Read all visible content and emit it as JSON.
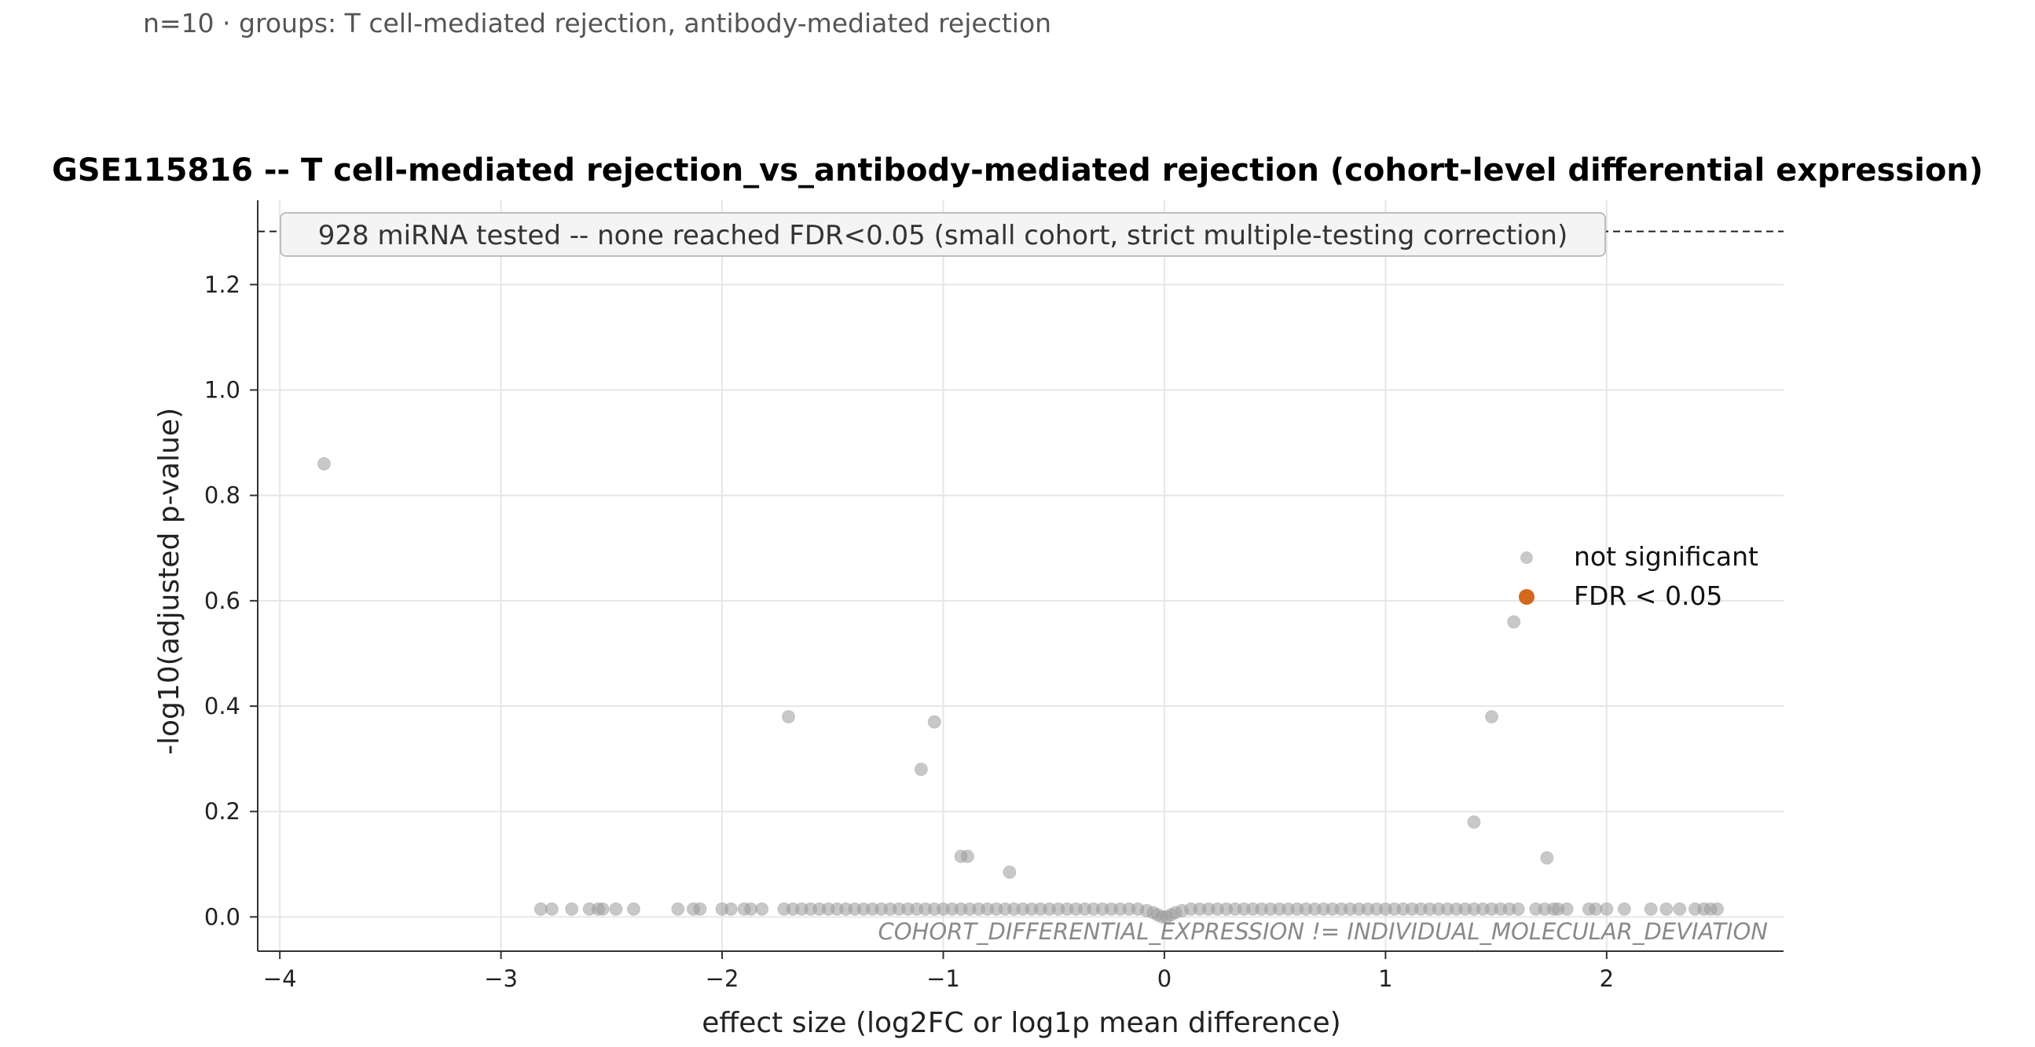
{
  "subtitle": "n=10 · groups: T cell-mediated rejection, antibody-mediated rejection",
  "colors": {
    "not_significant": "#9a9a9a",
    "significant": "#d2691e",
    "grid": "#e6e6e6"
  },
  "chart_data": {
    "type": "scatter",
    "title": "GSE115816 -- T cell-mediated rejection_vs_antibody-mediated rejection (cohort-level differential expression)",
    "xlabel": "effect size (log2FC or log1p mean difference)",
    "ylabel": "-log10(adjusted p-value)",
    "xlim": [
      -4.1,
      2.8
    ],
    "ylim": [
      -0.065,
      1.36
    ],
    "xticks": [
      -4,
      -3,
      -2,
      -1,
      0,
      1,
      2
    ],
    "xtick_labels": [
      "−4",
      "−3",
      "−2",
      "−1",
      "0",
      "1",
      "2"
    ],
    "yticks": [
      0.0,
      0.2,
      0.4,
      0.6,
      0.8,
      1.0,
      1.2
    ],
    "ytick_labels": [
      "0.0",
      "0.2",
      "0.4",
      "0.6",
      "0.8",
      "1.0",
      "1.2"
    ],
    "grid": true,
    "legend_position": "right",
    "threshold_line": {
      "y": 1.301,
      "style": "dashed"
    },
    "annotation_box": "928 miRNA tested -- none reached FDR<0.05 (small cohort, strict multiple-testing correction)",
    "footnote": "COHORT_DIFFERENTIAL_EXPRESSION != INDIVIDUAL_MOLECULAR_DEVIATION",
    "series": [
      {
        "name": "not significant",
        "points": [
          [
            -3.8,
            0.86
          ],
          [
            -1.7,
            0.38
          ],
          [
            -1.04,
            0.37
          ],
          [
            -1.1,
            0.28
          ],
          [
            -0.92,
            0.115
          ],
          [
            -0.89,
            0.115
          ],
          [
            -0.7,
            0.085
          ],
          [
            1.58,
            0.56
          ],
          [
            1.48,
            0.38
          ],
          [
            1.4,
            0.18
          ],
          [
            1.73,
            0.112
          ],
          [
            -2.82,
            0.015
          ],
          [
            -2.77,
            0.015
          ],
          [
            -2.68,
            0.015
          ],
          [
            -2.6,
            0.015
          ],
          [
            -2.56,
            0.015
          ],
          [
            -2.54,
            0.015
          ],
          [
            -2.48,
            0.015
          ],
          [
            -2.4,
            0.015
          ],
          [
            -2.2,
            0.015
          ],
          [
            -2.13,
            0.015
          ],
          [
            -2.1,
            0.015
          ],
          [
            -2.0,
            0.015
          ],
          [
            -1.96,
            0.015
          ],
          [
            -1.9,
            0.015
          ],
          [
            -1.87,
            0.015
          ],
          [
            -1.82,
            0.015
          ],
          [
            -1.72,
            0.015
          ],
          [
            -1.68,
            0.015
          ],
          [
            -1.64,
            0.015
          ],
          [
            -1.6,
            0.015
          ],
          [
            -1.56,
            0.015
          ],
          [
            -1.52,
            0.015
          ],
          [
            -1.48,
            0.015
          ],
          [
            -1.44,
            0.015
          ],
          [
            -1.4,
            0.015
          ],
          [
            -1.36,
            0.015
          ],
          [
            -1.32,
            0.015
          ],
          [
            -1.28,
            0.015
          ],
          [
            -1.24,
            0.015
          ],
          [
            -1.2,
            0.015
          ],
          [
            -1.16,
            0.015
          ],
          [
            -1.12,
            0.015
          ],
          [
            -1.08,
            0.015
          ],
          [
            -1.04,
            0.015
          ],
          [
            -1.0,
            0.015
          ],
          [
            -0.96,
            0.015
          ],
          [
            -0.92,
            0.015
          ],
          [
            -0.88,
            0.015
          ],
          [
            -0.84,
            0.015
          ],
          [
            -0.8,
            0.015
          ],
          [
            -0.76,
            0.015
          ],
          [
            -0.72,
            0.015
          ],
          [
            -0.68,
            0.015
          ],
          [
            -0.64,
            0.015
          ],
          [
            -0.6,
            0.015
          ],
          [
            -0.56,
            0.015
          ],
          [
            -0.52,
            0.015
          ],
          [
            -0.48,
            0.015
          ],
          [
            -0.44,
            0.015
          ],
          [
            -0.4,
            0.015
          ],
          [
            -0.36,
            0.015
          ],
          [
            -0.32,
            0.015
          ],
          [
            -0.28,
            0.015
          ],
          [
            -0.24,
            0.015
          ],
          [
            -0.2,
            0.015
          ],
          [
            -0.16,
            0.015
          ],
          [
            -0.12,
            0.015
          ],
          [
            -0.08,
            0.012
          ],
          [
            -0.05,
            0.008
          ],
          [
            -0.03,
            0.004
          ],
          [
            -0.01,
            0.0
          ],
          [
            0.01,
            0.0
          ],
          [
            0.03,
            0.004
          ],
          [
            0.05,
            0.008
          ],
          [
            0.08,
            0.012
          ],
          [
            0.12,
            0.015
          ],
          [
            0.16,
            0.015
          ],
          [
            0.2,
            0.015
          ],
          [
            0.24,
            0.015
          ],
          [
            0.28,
            0.015
          ],
          [
            0.32,
            0.015
          ],
          [
            0.36,
            0.015
          ],
          [
            0.4,
            0.015
          ],
          [
            0.44,
            0.015
          ],
          [
            0.48,
            0.015
          ],
          [
            0.52,
            0.015
          ],
          [
            0.56,
            0.015
          ],
          [
            0.6,
            0.015
          ],
          [
            0.64,
            0.015
          ],
          [
            0.68,
            0.015
          ],
          [
            0.72,
            0.015
          ],
          [
            0.76,
            0.015
          ],
          [
            0.8,
            0.015
          ],
          [
            0.84,
            0.015
          ],
          [
            0.88,
            0.015
          ],
          [
            0.92,
            0.015
          ],
          [
            0.96,
            0.015
          ],
          [
            1.0,
            0.015
          ],
          [
            1.04,
            0.015
          ],
          [
            1.08,
            0.015
          ],
          [
            1.12,
            0.015
          ],
          [
            1.16,
            0.015
          ],
          [
            1.2,
            0.015
          ],
          [
            1.24,
            0.015
          ],
          [
            1.28,
            0.015
          ],
          [
            1.32,
            0.015
          ],
          [
            1.36,
            0.015
          ],
          [
            1.4,
            0.015
          ],
          [
            1.44,
            0.015
          ],
          [
            1.48,
            0.015
          ],
          [
            1.52,
            0.015
          ],
          [
            1.56,
            0.015
          ],
          [
            1.6,
            0.015
          ],
          [
            1.68,
            0.015
          ],
          [
            1.72,
            0.015
          ],
          [
            1.76,
            0.015
          ],
          [
            1.78,
            0.015
          ],
          [
            1.82,
            0.015
          ],
          [
            1.92,
            0.015
          ],
          [
            1.95,
            0.015
          ],
          [
            2.0,
            0.015
          ],
          [
            2.08,
            0.015
          ],
          [
            2.2,
            0.015
          ],
          [
            2.27,
            0.015
          ],
          [
            2.33,
            0.015
          ],
          [
            2.4,
            0.015
          ],
          [
            2.44,
            0.015
          ],
          [
            2.47,
            0.015
          ],
          [
            2.5,
            0.015
          ]
        ]
      },
      {
        "name": "FDR < 0.05",
        "points": []
      }
    ]
  }
}
